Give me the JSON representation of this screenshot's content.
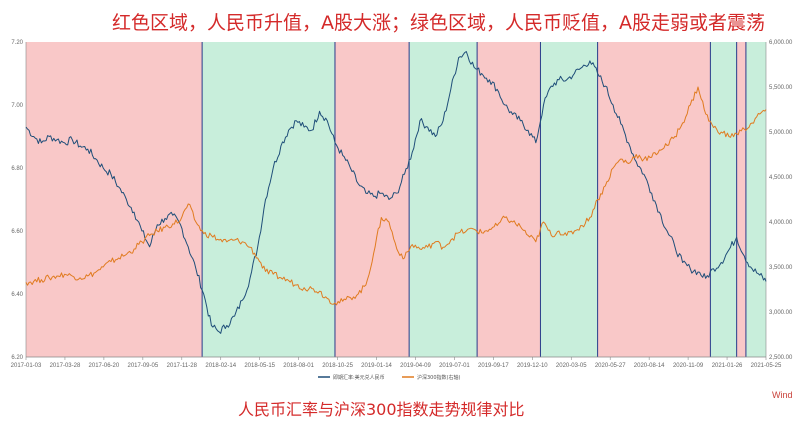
{
  "headline": "红色区域，人民币升值，A股大涨；绿色区域，人民币贬值，A股走弱或者震荡",
  "caption": "人民币汇率与沪深300指数走势规律对比",
  "source": "Wind",
  "chart_data": {
    "type": "line",
    "title": "",
    "xlabel": "",
    "ylabel": "",
    "x_tick_labels": [
      "2017-01-03",
      "2017-03-28",
      "2017-06-20",
      "2017-09-05",
      "2017-11-28",
      "2018-02-14",
      "2018-05-15",
      "2018-08-01",
      "2018-10-25",
      "2019-01-14",
      "2019-04-09",
      "2019-07-01",
      "2019-09-17",
      "2019-12-10",
      "2020-03-05",
      "2020-05-27",
      "2020-08-14",
      "2020-11-09",
      "2021-01-26",
      "2021-05-25"
    ],
    "y_left": {
      "ylim": [
        6.2,
        7.2
      ],
      "ticks": [
        "6.20",
        "6.40",
        "6.60",
        "6.80",
        "7.00",
        "7.20"
      ]
    },
    "y_right": {
      "ylim": [
        2500,
        6000
      ],
      "ticks": [
        "2,500.00",
        "3,000.00",
        "3,500.00",
        "4,000.00",
        "4,500.00",
        "5,000.00",
        "5,500.00",
        "6,000.00"
      ]
    },
    "legend_position": "bottom",
    "grid": false,
    "series": [
      {
        "name": "即期汇率:美元兑人民币",
        "axis": "left",
        "color": "#1f4e79",
        "points": [
          [
            0,
            6.93
          ],
          [
            5,
            6.9
          ],
          [
            10,
            6.88
          ],
          [
            15,
            6.9
          ],
          [
            20,
            6.89
          ],
          [
            25,
            6.88
          ],
          [
            30,
            6.89
          ],
          [
            35,
            6.87
          ],
          [
            40,
            6.86
          ],
          [
            45,
            6.83
          ],
          [
            50,
            6.8
          ],
          [
            55,
            6.78
          ],
          [
            60,
            6.74
          ],
          [
            65,
            6.7
          ],
          [
            70,
            6.66
          ],
          [
            75,
            6.6
          ],
          [
            80,
            6.55
          ],
          [
            85,
            6.62
          ],
          [
            90,
            6.64
          ],
          [
            95,
            6.65
          ],
          [
            100,
            6.62
          ],
          [
            105,
            6.55
          ],
          [
            110,
            6.48
          ],
          [
            115,
            6.4
          ],
          [
            120,
            6.3
          ],
          [
            125,
            6.28
          ],
          [
            130,
            6.3
          ],
          [
            135,
            6.33
          ],
          [
            140,
            6.38
          ],
          [
            145,
            6.45
          ],
          [
            150,
            6.55
          ],
          [
            155,
            6.7
          ],
          [
            160,
            6.8
          ],
          [
            165,
            6.87
          ],
          [
            170,
            6.92
          ],
          [
            175,
            6.95
          ],
          [
            180,
            6.93
          ],
          [
            185,
            6.92
          ],
          [
            190,
            6.98
          ],
          [
            195,
            6.95
          ],
          [
            200,
            6.88
          ],
          [
            205,
            6.84
          ],
          [
            210,
            6.8
          ],
          [
            215,
            6.75
          ],
          [
            220,
            6.72
          ],
          [
            225,
            6.71
          ],
          [
            230,
            6.72
          ],
          [
            235,
            6.7
          ],
          [
            240,
            6.72
          ],
          [
            245,
            6.78
          ],
          [
            250,
            6.85
          ],
          [
            255,
            6.95
          ],
          [
            260,
            6.93
          ],
          [
            265,
            6.9
          ],
          [
            270,
            6.95
          ],
          [
            275,
            7.05
          ],
          [
            280,
            7.15
          ],
          [
            285,
            7.17
          ],
          [
            290,
            7.12
          ],
          [
            295,
            7.1
          ],
          [
            300,
            7.08
          ],
          [
            305,
            7.05
          ],
          [
            310,
            7.0
          ],
          [
            315,
            6.97
          ],
          [
            320,
            6.95
          ],
          [
            325,
            6.92
          ],
          [
            330,
            6.88
          ],
          [
            335,
            7.0
          ],
          [
            340,
            7.06
          ],
          [
            345,
            7.08
          ],
          [
            350,
            7.08
          ],
          [
            355,
            7.1
          ],
          [
            360,
            7.12
          ],
          [
            365,
            7.14
          ],
          [
            370,
            7.1
          ],
          [
            375,
            7.06
          ],
          [
            380,
            7.0
          ],
          [
            385,
            6.94
          ],
          [
            390,
            6.88
          ],
          [
            395,
            6.82
          ],
          [
            400,
            6.78
          ],
          [
            405,
            6.72
          ],
          [
            410,
            6.66
          ],
          [
            415,
            6.6
          ],
          [
            420,
            6.55
          ],
          [
            425,
            6.5
          ],
          [
            430,
            6.48
          ],
          [
            435,
            6.47
          ],
          [
            440,
            6.45
          ],
          [
            445,
            6.48
          ],
          [
            450,
            6.5
          ],
          [
            455,
            6.54
          ],
          [
            460,
            6.58
          ],
          [
            465,
            6.52
          ],
          [
            470,
            6.48
          ],
          [
            475,
            6.46
          ],
          [
            479,
            6.44
          ]
        ]
      },
      {
        "name": "沪深300指数(右轴)",
        "axis": "right",
        "color": "#e07b20",
        "points": [
          [
            0,
            3330
          ],
          [
            5,
            3340
          ],
          [
            10,
            3360
          ],
          [
            15,
            3380
          ],
          [
            20,
            3400
          ],
          [
            25,
            3420
          ],
          [
            30,
            3400
          ],
          [
            35,
            3380
          ],
          [
            40,
            3400
          ],
          [
            45,
            3440
          ],
          [
            50,
            3500
          ],
          [
            55,
            3560
          ],
          [
            60,
            3600
          ],
          [
            65,
            3640
          ],
          [
            70,
            3700
          ],
          [
            75,
            3780
          ],
          [
            80,
            3850
          ],
          [
            85,
            3900
          ],
          [
            90,
            3940
          ],
          [
            95,
            3980
          ],
          [
            100,
            4020
          ],
          [
            105,
            4200
          ],
          [
            110,
            4000
          ],
          [
            115,
            3870
          ],
          [
            120,
            3850
          ],
          [
            125,
            3800
          ],
          [
            130,
            3780
          ],
          [
            135,
            3800
          ],
          [
            140,
            3780
          ],
          [
            145,
            3720
          ],
          [
            150,
            3600
          ],
          [
            155,
            3450
          ],
          [
            160,
            3420
          ],
          [
            165,
            3380
          ],
          [
            170,
            3350
          ],
          [
            175,
            3300
          ],
          [
            180,
            3270
          ],
          [
            185,
            3260
          ],
          [
            190,
            3230
          ],
          [
            195,
            3150
          ],
          [
            200,
            3100
          ],
          [
            205,
            3120
          ],
          [
            210,
            3160
          ],
          [
            215,
            3200
          ],
          [
            220,
            3300
          ],
          [
            225,
            3650
          ],
          [
            230,
            4050
          ],
          [
            235,
            4000
          ],
          [
            240,
            3700
          ],
          [
            245,
            3600
          ],
          [
            250,
            3750
          ],
          [
            255,
            3700
          ],
          [
            260,
            3720
          ],
          [
            265,
            3780
          ],
          [
            270,
            3720
          ],
          [
            275,
            3800
          ],
          [
            280,
            3880
          ],
          [
            285,
            3900
          ],
          [
            290,
            3920
          ],
          [
            295,
            3880
          ],
          [
            300,
            3920
          ],
          [
            305,
            3960
          ],
          [
            310,
            4050
          ],
          [
            315,
            4000
          ],
          [
            320,
            3950
          ],
          [
            325,
            3850
          ],
          [
            330,
            3780
          ],
          [
            335,
            4000
          ],
          [
            340,
            3850
          ],
          [
            345,
            3900
          ],
          [
            350,
            3850
          ],
          [
            355,
            3900
          ],
          [
            360,
            3960
          ],
          [
            365,
            4050
          ],
          [
            370,
            4250
          ],
          [
            375,
            4400
          ],
          [
            380,
            4600
          ],
          [
            385,
            4700
          ],
          [
            390,
            4650
          ],
          [
            395,
            4750
          ],
          [
            400,
            4700
          ],
          [
            405,
            4720
          ],
          [
            410,
            4800
          ],
          [
            415,
            4850
          ],
          [
            420,
            4950
          ],
          [
            425,
            5100
          ],
          [
            430,
            5300
          ],
          [
            435,
            5500
          ],
          [
            440,
            5200
          ],
          [
            445,
            5050
          ],
          [
            450,
            5000
          ],
          [
            455,
            4950
          ],
          [
            460,
            4980
          ],
          [
            465,
            5030
          ],
          [
            470,
            5100
          ],
          [
            475,
            5200
          ],
          [
            479,
            5250
          ]
        ]
      }
    ],
    "regions": [
      {
        "type": "rmb-appreciation",
        "color": "#f9c8c8",
        "start": 0,
        "end": 114
      },
      {
        "type": "rmb-depreciation",
        "color": "#c8eedb",
        "start": 114,
        "end": 200
      },
      {
        "type": "rmb-appreciation",
        "color": "#f9c8c8",
        "start": 200,
        "end": 248
      },
      {
        "type": "rmb-depreciation",
        "color": "#c8eedb",
        "start": 248,
        "end": 292
      },
      {
        "type": "rmb-appreciation",
        "color": "#f9c8c8",
        "start": 292,
        "end": 333
      },
      {
        "type": "rmb-depreciation",
        "color": "#c8eedb",
        "start": 333,
        "end": 370
      },
      {
        "type": "rmb-appreciation",
        "color": "#f9c8c8",
        "start": 370,
        "end": 443
      },
      {
        "type": "rmb-depreciation",
        "color": "#c8eedb",
        "start": 443,
        "end": 460
      },
      {
        "type": "rmb-appreciation",
        "color": "#f9c8c8",
        "start": 460,
        "end": 466
      },
      {
        "type": "rmb-depreciation",
        "color": "#c8eedb",
        "start": 466,
        "end": 479
      }
    ]
  }
}
